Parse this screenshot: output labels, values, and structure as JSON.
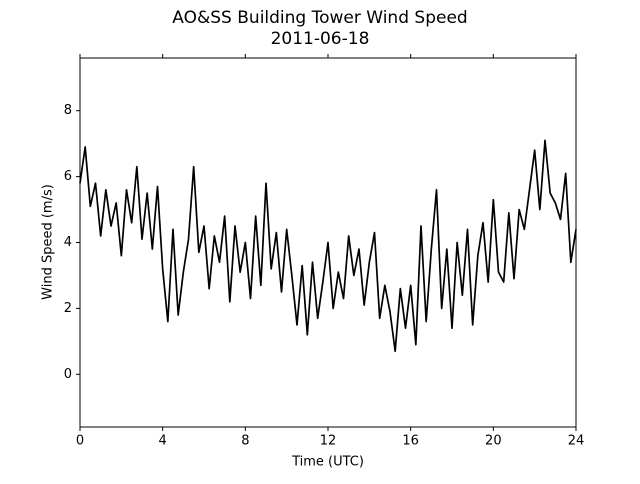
{
  "chart_data": {
    "type": "line",
    "title": "AO&SS Building Tower Wind Speed",
    "subtitle": "2011-06-18",
    "x_label": "Time (UTC)",
    "y_label": "Wind Speed (m/s)",
    "xlim": [
      0,
      24
    ],
    "xticks": [
      0,
      4,
      8,
      12,
      16,
      20,
      24
    ],
    "ylim": [
      -1.6,
      9.6
    ],
    "yticks": [
      0,
      2,
      4,
      6,
      8
    ],
    "grid": false,
    "x": [
      0,
      0.25,
      0.5,
      0.75,
      1,
      1.25,
      1.5,
      1.75,
      2,
      2.25,
      2.5,
      2.75,
      3,
      3.25,
      3.5,
      3.75,
      4,
      4.25,
      4.5,
      4.75,
      5,
      5.25,
      5.5,
      5.75,
      6,
      6.25,
      6.5,
      6.75,
      7,
      7.25,
      7.5,
      7.75,
      8,
      8.25,
      8.5,
      8.75,
      9,
      9.25,
      9.5,
      9.75,
      10,
      10.25,
      10.5,
      10.75,
      11,
      11.25,
      11.5,
      11.75,
      12,
      12.25,
      12.5,
      12.75,
      13,
      13.25,
      13.5,
      13.75,
      14,
      14.25,
      14.5,
      14.75,
      15,
      15.25,
      15.5,
      15.75,
      16,
      16.25,
      16.5,
      16.75,
      17,
      17.25,
      17.5,
      17.75,
      18,
      18.25,
      18.5,
      18.75,
      19,
      19.25,
      19.5,
      19.75,
      20,
      20.25,
      20.5,
      20.75,
      21,
      21.25,
      21.5,
      21.75,
      22,
      22.25,
      22.5,
      22.75,
      23,
      23.25,
      23.5,
      23.75,
      24
    ],
    "series": [
      {
        "name": "Wind Speed",
        "color": "#000000",
        "values": [
          5.8,
          6.9,
          5.1,
          5.8,
          4.2,
          5.6,
          4.5,
          5.2,
          3.6,
          5.6,
          4.6,
          6.3,
          4.1,
          5.5,
          3.8,
          5.7,
          3.2,
          1.6,
          4.4,
          1.8,
          3.1,
          4.1,
          6.3,
          3.7,
          4.5,
          2.6,
          4.2,
          3.4,
          4.8,
          2.2,
          4.5,
          3.1,
          4.0,
          2.3,
          4.8,
          2.7,
          5.8,
          3.2,
          4.3,
          2.5,
          4.4,
          3.0,
          1.5,
          3.3,
          1.2,
          3.4,
          1.7,
          2.8,
          4.0,
          2.0,
          3.1,
          2.3,
          4.2,
          3.0,
          3.8,
          2.1,
          3.4,
          4.3,
          1.7,
          2.7,
          1.9,
          0.7,
          2.6,
          1.4,
          2.7,
          0.9,
          4.5,
          1.6,
          3.8,
          5.6,
          2.0,
          3.8,
          1.4,
          4.0,
          2.4,
          4.4,
          1.5,
          3.6,
          4.6,
          2.8,
          5.3,
          3.1,
          2.8,
          4.9,
          2.9,
          5.0,
          4.4,
          5.6,
          6.8,
          5.0,
          7.1,
          5.5,
          5.2,
          4.7,
          6.1,
          3.4,
          4.4
        ]
      }
    ]
  }
}
